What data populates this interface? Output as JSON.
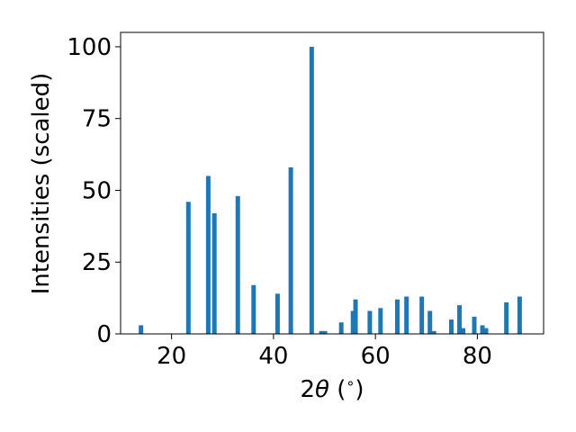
{
  "chart_data": {
    "type": "bar",
    "title": "",
    "xlabel_prefix": "2",
    "xlabel_symbol": "θ",
    "xlabel_suffix": " (",
    "xlabel_degree": "∘",
    "xlabel_close": ")",
    "ylabel": "Intensities (scaled)",
    "xlim": [
      10,
      93
    ],
    "ylim": [
      0,
      105
    ],
    "xticks": [
      20,
      40,
      60,
      80
    ],
    "yticks": [
      0,
      25,
      50,
      75,
      100
    ],
    "grid": false,
    "bar_color": "#1f77b4",
    "x": [
      14.0,
      23.3,
      27.2,
      28.4,
      33.0,
      36.1,
      40.8,
      43.4,
      47.5,
      49.4,
      50.1,
      53.3,
      55.6,
      56.1,
      58.9,
      61.0,
      64.3,
      66.1,
      69.1,
      70.7,
      71.5,
      74.9,
      76.5,
      77.2,
      79.4,
      81.0,
      81.7,
      85.7,
      88.3
    ],
    "values": [
      3,
      46,
      55,
      42,
      48,
      17,
      14,
      58,
      100,
      1,
      1,
      4,
      8,
      12,
      8,
      9,
      12,
      13,
      13,
      8,
      1,
      5,
      10,
      2,
      6,
      3,
      2,
      11,
      13
    ]
  }
}
